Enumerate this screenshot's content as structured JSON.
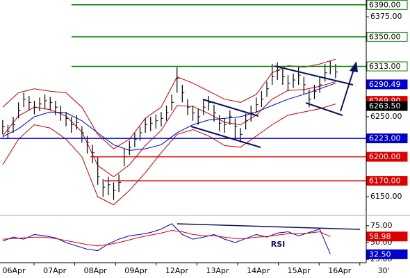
{
  "chart_data": [
    {
      "type": "ohlc",
      "xlim": [
        -0.5,
        68.8
      ],
      "ylim": [
        6131,
        6396
      ],
      "yticks": [
        {
          "value": 6150,
          "label": "6150.00"
        },
        {
          "value": 6250,
          "label": "6250.00"
        },
        {
          "value": 6375,
          "label": "6375.00"
        }
      ],
      "bars": {
        "close": [
          6238,
          6232,
          6240,
          6258,
          6272,
          6268,
          6262,
          6266,
          6270,
          6268,
          6262,
          6255,
          6248,
          6240,
          6243,
          6230,
          6218,
          6205,
          6175,
          6162,
          6165,
          6158,
          6168,
          6200,
          6212,
          6222,
          6230,
          6240,
          6242,
          6245,
          6248,
          6255,
          6268,
          6298,
          6280,
          6262,
          6255,
          6250,
          6262,
          6268,
          6255,
          6242,
          6240,
          6250,
          6238,
          6228,
          6245,
          6255,
          6265,
          6272,
          6285,
          6300,
          6308,
          6300,
          6292,
          6296,
          6302,
          6290,
          6272,
          6282,
          6290,
          6305,
          6313,
          6306
        ],
        "high": [
          6246,
          6240,
          6250,
          6268,
          6280,
          6276,
          6270,
          6274,
          6278,
          6275,
          6270,
          6264,
          6256,
          6250,
          6252,
          6238,
          6226,
          6215,
          6200,
          6172,
          6175,
          6168,
          6178,
          6210,
          6220,
          6230,
          6238,
          6248,
          6250,
          6253,
          6256,
          6264,
          6278,
          6312,
          6290,
          6272,
          6264,
          6260,
          6272,
          6276,
          6265,
          6252,
          6248,
          6258,
          6248,
          6236,
          6254,
          6264,
          6274,
          6282,
          6294,
          6316,
          6318,
          6310,
          6302,
          6304,
          6312,
          6300,
          6284,
          6290,
          6300,
          6316,
          6320,
          6316
        ],
        "low": [
          6228,
          6222,
          6230,
          6248,
          6262,
          6258,
          6253,
          6257,
          6260,
          6258,
          6252,
          6245,
          6238,
          6230,
          6234,
          6218,
          6204,
          6192,
          6165,
          6150,
          6152,
          6146,
          6156,
          6188,
          6202,
          6212,
          6220,
          6230,
          6232,
          6235,
          6238,
          6245,
          6258,
          6280,
          6268,
          6252,
          6245,
          6240,
          6252,
          6258,
          6244,
          6232,
          6230,
          6240,
          6222,
          6218,
          6234,
          6244,
          6255,
          6262,
          6275,
          6290,
          6296,
          6290,
          6282,
          6286,
          6290,
          6278,
          6262,
          6272,
          6280,
          6294,
          6303,
          6298
        ]
      },
      "series": [
        {
          "color": "#cc0000",
          "x": [
            0,
            3,
            6,
            9,
            12,
            15,
            18,
            21,
            24,
            27,
            30,
            33,
            36,
            39,
            42,
            45,
            48,
            51,
            54,
            57,
            60,
            63
          ],
          "values": [
            6262,
            6280,
            6285,
            6282,
            6280,
            6262,
            6228,
            6210,
            6222,
            6248,
            6262,
            6300,
            6292,
            6282,
            6272,
            6268,
            6278,
            6305,
            6314,
            6312,
            6316,
            6322
          ]
        },
        {
          "color": "#cc0000",
          "x": [
            0,
            3,
            6,
            9,
            12,
            15,
            18,
            21,
            24,
            27,
            30,
            33,
            36,
            39,
            42,
            45,
            48,
            51,
            54,
            57,
            60,
            63
          ],
          "values": [
            6190,
            6222,
            6240,
            6236,
            6222,
            6200,
            6150,
            6140,
            6158,
            6180,
            6205,
            6228,
            6234,
            6226,
            6214,
            6212,
            6226,
            6240,
            6252,
            6256,
            6260,
            6266
          ]
        },
        {
          "color": "#cc0000",
          "x": [
            0,
            3,
            6,
            9,
            12,
            15,
            18,
            21,
            24,
            27,
            30,
            33,
            36,
            39,
            42,
            45,
            48,
            51,
            54,
            57,
            60,
            63
          ],
          "values": [
            6226,
            6251,
            6262,
            6259,
            6251,
            6231,
            6189,
            6175,
            6190,
            6214,
            6233,
            6264,
            6263,
            6254,
            6243,
            6240,
            6252,
            6272,
            6283,
            6284,
            6288,
            6294
          ]
        },
        {
          "color": "#0000cc",
          "x": [
            0,
            3,
            6,
            9,
            12,
            15,
            18,
            21,
            24,
            27,
            30,
            33,
            36,
            39,
            42,
            45,
            48,
            51,
            54,
            57,
            60,
            63
          ],
          "values": [
            6225,
            6235,
            6250,
            6256,
            6255,
            6245,
            6230,
            6215,
            6208,
            6210,
            6215,
            6230,
            6240,
            6246,
            6248,
            6250,
            6256,
            6264,
            6272,
            6278,
            6285,
            6292
          ]
        }
      ],
      "levels": [
        {
          "value": 6390,
          "label": "6390.00",
          "color": "#008000",
          "label_fill": "#ffffff"
        },
        {
          "value": 6350,
          "label": "6350.00",
          "color": "#008000",
          "label_fill": "#ffffff"
        },
        {
          "value": 6313,
          "label": "6313.00",
          "color": "#008000",
          "label_fill": "#ffffff"
        },
        {
          "value": 6223,
          "label": "6223.00",
          "color": "#0000cc",
          "label_fill": "#0000cc"
        },
        {
          "value": 6200,
          "label": "6200.00",
          "color": "#dd0000",
          "label_fill": "#dd0000"
        },
        {
          "value": 6170,
          "label": "6170.00",
          "color": "#dd0000",
          "label_fill": "#dd0000"
        }
      ],
      "markers": [
        {
          "value": 6290.49,
          "label": "6290.49",
          "color": "#0000cc"
        },
        {
          "value": 6269.9,
          "label": "6269.90",
          "color": "#dd0000"
        },
        {
          "value": 6263.5,
          "label": "6263.50",
          "color": "#000000"
        }
      ],
      "categories": [
        "06Apr",
        "07Apr",
        "08Apr",
        "09Apr",
        "12Apr",
        "13Apr",
        "14Apr",
        "15Apr",
        "16Apr",
        "30'"
      ]
    },
    {
      "type": "line",
      "annotation": "RSI",
      "xlim": [
        -0.5,
        68.8
      ],
      "ylim": [
        20,
        82
      ],
      "yticks": [
        {
          "value": 25,
          "label": "25.00"
        },
        {
          "value": 50,
          "label": "50.00"
        },
        {
          "value": 75,
          "label": "75.00"
        }
      ],
      "series": [
        {
          "color": "#0000cc",
          "x": [
            0,
            2,
            4,
            6,
            8,
            10,
            12,
            14,
            16,
            18,
            20,
            22,
            24,
            26,
            28,
            30,
            32,
            34,
            36,
            38,
            40,
            42,
            44,
            46,
            48,
            50,
            52,
            54,
            56,
            58,
            60,
            62
          ],
          "values": [
            52,
            58,
            55,
            62,
            60,
            57,
            50,
            45,
            40,
            38,
            48,
            55,
            60,
            62,
            65,
            70,
            78,
            62,
            55,
            58,
            62,
            55,
            50,
            56,
            62,
            58,
            64,
            66,
            60,
            65,
            70,
            33
          ]
        },
        {
          "color": "#dd0000",
          "x": [
            0,
            2,
            4,
            6,
            8,
            10,
            12,
            14,
            16,
            18,
            20,
            22,
            24,
            26,
            28,
            30,
            32,
            34,
            36,
            38,
            40,
            42,
            44,
            46,
            48,
            50,
            52,
            54,
            56,
            58,
            60,
            62
          ],
          "values": [
            55,
            56,
            57,
            58,
            58,
            56,
            53,
            50,
            47,
            45,
            47,
            50,
            54,
            58,
            61,
            64,
            68,
            66,
            62,
            60,
            60,
            58,
            56,
            56,
            58,
            59,
            61,
            63,
            63,
            64,
            66,
            59
          ]
        }
      ],
      "markers": [
        {
          "value": 58.98,
          "label": "58.98",
          "color": "#dd0000"
        },
        {
          "value": 32.5,
          "label": "32.50",
          "color": "#0000cc"
        }
      ]
    }
  ]
}
